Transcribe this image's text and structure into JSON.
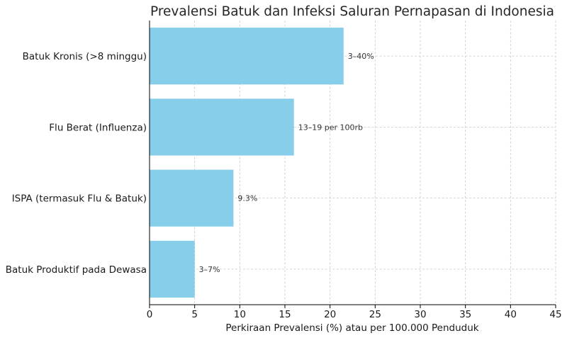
{
  "chart_data": {
    "type": "bar",
    "orientation": "horizontal",
    "title": "Prevalensi Batuk dan Infeksi Saluran Pernapasan di Indonesia",
    "xlabel": "Perkiraan Prevalensi (%) atau per 100.000 Penduduk",
    "ylabel": "",
    "xlim": [
      0,
      45
    ],
    "xticks": [
      0,
      5,
      10,
      15,
      20,
      25,
      30,
      35,
      40,
      45
    ],
    "grid": true,
    "categories": [
      "Batuk Kronis (>8 minggu)",
      "Flu Berat (Influenza)",
      "ISPA (termasuk Flu & Batuk)",
      "Batuk Produktif pada Dewasa"
    ],
    "values": [
      21.5,
      16,
      9.3,
      5
    ],
    "data_labels": [
      "3–40%",
      "13–19 per 100rb",
      "9.3%",
      "3–7%"
    ],
    "bar_color": "#87ceeb"
  }
}
